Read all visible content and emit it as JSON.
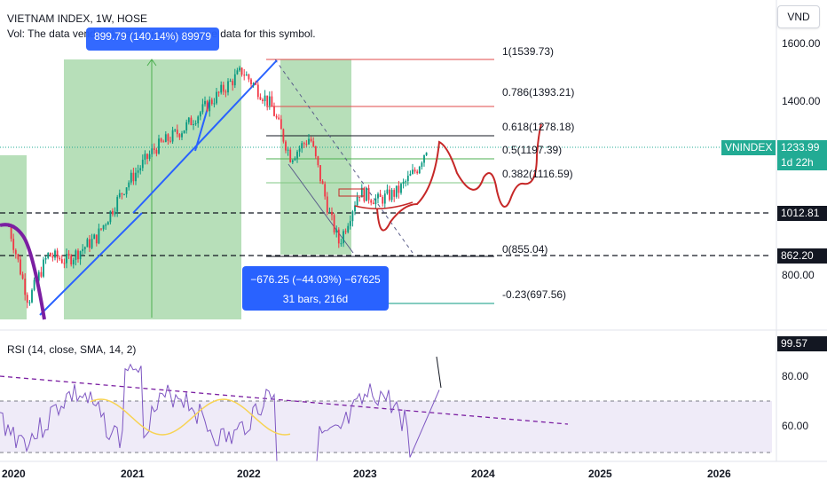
{
  "header": {
    "title": "VIETNAM INDEX, 1W, HOSE",
    "volume_note": "Vol: The data vendor doesn't provide volume data for this symbol.",
    "currency": "VND"
  },
  "measure_up": "899.79 (140.14%) 89979",
  "measure_down": {
    "line1": "−676.25 (−44.03%) −67625",
    "line2": "31 bars, 216d"
  },
  "price_axis": {
    "ticks": [
      "1600.00",
      "1400.00",
      "800.00"
    ],
    "symbol_label": "VNINDEX",
    "last_price": "1233.99",
    "countdown": "1d 22h",
    "line_labels": [
      "1012.81",
      "862.20"
    ],
    "accent": "#22ab94"
  },
  "fib_levels": [
    {
      "label": "1(1539.73)",
      "color": "#e04a4a"
    },
    {
      "label": "0.786(1393.21)",
      "color": "#e04a4a"
    },
    {
      "label": "0.618(1278.18)",
      "color": "#131722"
    },
    {
      "label": "0.5(1197.39)",
      "color": "#4caf50"
    },
    {
      "label": "0.382(1116.59)",
      "color": "#81c784"
    },
    {
      "label": "0(855.04)",
      "color": "#131722"
    },
    {
      "label": "-0.23(697.56)",
      "color": "#089981"
    }
  ],
  "rsi": {
    "label": "RSI (14, close, SMA, 14, 2)",
    "value": "99.57",
    "ticks": [
      "80.00",
      "60.00"
    ]
  },
  "time_axis": {
    "labels": [
      "2020",
      "2021",
      "2022",
      "2023",
      "2024",
      "2025",
      "2026"
    ]
  },
  "chart_data": {
    "type": "candlestick",
    "title": "VIETNAM INDEX, 1W, HOSE",
    "y_ticks": [
      1600,
      1400,
      800
    ],
    "x_ticks": [
      "2020",
      "2021",
      "2022",
      "2023",
      "2024",
      "2025",
      "2026"
    ],
    "close_path": [
      [
        "2020-01",
        960
      ],
      [
        "2020-03",
        700
      ],
      [
        "2020-05",
        860
      ],
      [
        "2020-07",
        840
      ],
      [
        "2020-10",
        920
      ],
      [
        "2021-01",
        1100
      ],
      [
        "2021-04",
        1230
      ],
      [
        "2021-07",
        1300
      ],
      [
        "2021-10",
        1400
      ],
      [
        "2022-01",
        1500
      ],
      [
        "2022-04",
        1380
      ],
      [
        "2022-06",
        1200
      ],
      [
        "2022-08",
        1270
      ],
      [
        "2022-10",
        1000
      ],
      [
        "2022-11",
        900
      ],
      [
        "2023-01",
        1080
      ],
      [
        "2023-03",
        1050
      ],
      [
        "2023-05",
        1080
      ],
      [
        "2023-07",
        1160
      ],
      [
        "2023-08",
        1233.99
      ]
    ],
    "projection_path": [
      [
        "2023-08",
        1240
      ],
      [
        "2023-10",
        1100
      ],
      [
        "2024-01",
        1180
      ],
      [
        "2024-03",
        1020
      ],
      [
        "2024-06",
        1150
      ],
      [
        "2024-09",
        1270
      ]
    ],
    "horizontal_levels": [
      1012.81,
      862.2
    ],
    "rsi_last": 99.57
  }
}
